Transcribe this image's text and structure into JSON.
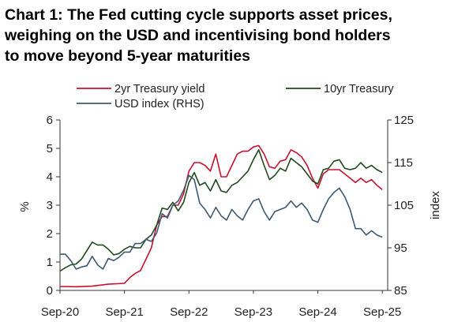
{
  "title_lines": [
    "Chart 1: The Fed cutting cycle supports asset prices,",
    "weighing on the USD and incentivising bond holders",
    "to move beyond 5-year maturities"
  ],
  "chart_data": {
    "type": "line",
    "title": "Chart 1: The Fed cutting cycle supports asset prices, weighing on the USD and incentivising bond holders to move beyond 5-year maturities",
    "ylabel": "%",
    "y2label": "index",
    "ylim": [
      0,
      6
    ],
    "y2lim": [
      85,
      125
    ],
    "yticks": [
      "0",
      "1",
      "2",
      "3",
      "4",
      "5",
      "6"
    ],
    "y2ticks": [
      "85",
      "95",
      "105",
      "115",
      "125"
    ],
    "xlim": [
      "2020-09",
      "2025-10"
    ],
    "xticks": [
      "Sep-20",
      "Sep-21",
      "Sep-22",
      "Sep-23",
      "Sep-24",
      "Sep-25"
    ],
    "grid": false,
    "legend": "top",
    "series": [
      {
        "name": "2yr Treasury yield",
        "axis": "left",
        "color": "#c8102e",
        "points": [
          [
            "2020-09",
            0.14
          ],
          [
            "2020-12",
            0.13
          ],
          [
            "2021-03",
            0.15
          ],
          [
            "2021-06",
            0.22
          ],
          [
            "2021-09",
            0.25
          ],
          [
            "2021-10",
            0.45
          ],
          [
            "2021-11",
            0.6
          ],
          [
            "2021-12",
            0.7
          ],
          [
            "2022-01",
            1.1
          ],
          [
            "2022-02",
            1.5
          ],
          [
            "2022-03",
            2.3
          ],
          [
            "2022-04",
            2.6
          ],
          [
            "2022-05",
            2.6
          ],
          [
            "2022-06",
            3.0
          ],
          [
            "2022-07",
            3.0
          ],
          [
            "2022-08",
            3.4
          ],
          [
            "2022-09",
            4.2
          ],
          [
            "2022-10",
            4.5
          ],
          [
            "2022-11",
            4.5
          ],
          [
            "2022-12",
            4.4
          ],
          [
            "2023-01",
            4.2
          ],
          [
            "2023-02",
            4.8
          ],
          [
            "2023-03",
            4.0
          ],
          [
            "2023-04",
            4.0
          ],
          [
            "2023-05",
            4.4
          ],
          [
            "2023-06",
            4.8
          ],
          [
            "2023-07",
            4.9
          ],
          [
            "2023-08",
            4.9
          ],
          [
            "2023-09",
            5.05
          ],
          [
            "2023-10",
            5.1
          ],
          [
            "2023-11",
            4.8
          ],
          [
            "2023-12",
            4.35
          ],
          [
            "2024-01",
            4.3
          ],
          [
            "2024-02",
            4.55
          ],
          [
            "2024-03",
            4.6
          ],
          [
            "2024-04",
            4.95
          ],
          [
            "2024-05",
            4.85
          ],
          [
            "2024-06",
            4.7
          ],
          [
            "2024-07",
            4.4
          ],
          [
            "2024-08",
            3.95
          ],
          [
            "2024-09",
            3.6
          ],
          [
            "2024-10",
            4.1
          ],
          [
            "2024-11",
            4.25
          ],
          [
            "2024-12",
            4.25
          ],
          [
            "2025-01",
            4.25
          ],
          [
            "2025-02",
            4.1
          ],
          [
            "2025-03",
            3.95
          ],
          [
            "2025-04",
            3.8
          ],
          [
            "2025-05",
            3.95
          ],
          [
            "2025-06",
            3.8
          ],
          [
            "2025-07",
            3.9
          ],
          [
            "2025-08",
            3.7
          ],
          [
            "2025-09",
            3.55
          ]
        ]
      },
      {
        "name": "10yr Treasury",
        "axis": "left",
        "color": "#1f4a1c",
        "points": [
          [
            "2020-09",
            0.68
          ],
          [
            "2020-10",
            0.8
          ],
          [
            "2020-11",
            0.9
          ],
          [
            "2020-12",
            0.93
          ],
          [
            "2021-01",
            1.1
          ],
          [
            "2021-02",
            1.4
          ],
          [
            "2021-03",
            1.7
          ],
          [
            "2021-04",
            1.6
          ],
          [
            "2021-05",
            1.6
          ],
          [
            "2021-06",
            1.45
          ],
          [
            "2021-07",
            1.25
          ],
          [
            "2021-08",
            1.3
          ],
          [
            "2021-09",
            1.45
          ],
          [
            "2021-10",
            1.55
          ],
          [
            "2021-11",
            1.5
          ],
          [
            "2021-12",
            1.5
          ],
          [
            "2022-01",
            1.8
          ],
          [
            "2022-02",
            1.95
          ],
          [
            "2022-03",
            2.3
          ],
          [
            "2022-04",
            2.9
          ],
          [
            "2022-05",
            2.85
          ],
          [
            "2022-06",
            3.1
          ],
          [
            "2022-07",
            2.8
          ],
          [
            "2022-08",
            3.1
          ],
          [
            "2022-09",
            3.8
          ],
          [
            "2022-10",
            4.15
          ],
          [
            "2022-11",
            3.7
          ],
          [
            "2022-12",
            3.8
          ],
          [
            "2023-01",
            3.5
          ],
          [
            "2023-02",
            3.9
          ],
          [
            "2023-03",
            3.5
          ],
          [
            "2023-04",
            3.45
          ],
          [
            "2023-05",
            3.7
          ],
          [
            "2023-06",
            3.8
          ],
          [
            "2023-07",
            4.0
          ],
          [
            "2023-08",
            4.2
          ],
          [
            "2023-09",
            4.6
          ],
          [
            "2023-10",
            4.95
          ],
          [
            "2023-11",
            4.4
          ],
          [
            "2023-12",
            3.9
          ],
          [
            "2024-01",
            4.05
          ],
          [
            "2024-02",
            4.3
          ],
          [
            "2024-03",
            4.2
          ],
          [
            "2024-04",
            4.65
          ],
          [
            "2024-05",
            4.5
          ],
          [
            "2024-06",
            4.35
          ],
          [
            "2024-07",
            4.1
          ],
          [
            "2024-08",
            3.85
          ],
          [
            "2024-09",
            3.75
          ],
          [
            "2024-10",
            4.25
          ],
          [
            "2024-11",
            4.3
          ],
          [
            "2024-12",
            4.55
          ],
          [
            "2025-01",
            4.6
          ],
          [
            "2025-02",
            4.3
          ],
          [
            "2025-03",
            4.25
          ],
          [
            "2025-04",
            4.3
          ],
          [
            "2025-05",
            4.5
          ],
          [
            "2025-06",
            4.3
          ],
          [
            "2025-07",
            4.4
          ],
          [
            "2025-08",
            4.25
          ],
          [
            "2025-09",
            4.15
          ]
        ]
      },
      {
        "name": "USD index (RHS)",
        "axis": "right",
        "color": "#3d5a73",
        "points": [
          [
            "2020-09",
            93.5
          ],
          [
            "2020-10",
            93.5
          ],
          [
            "2020-11",
            92.0
          ],
          [
            "2020-12",
            90.0
          ],
          [
            "2021-01",
            90.5
          ],
          [
            "2021-02",
            90.8
          ],
          [
            "2021-03",
            93.0
          ],
          [
            "2021-04",
            91.0
          ],
          [
            "2021-05",
            90.0
          ],
          [
            "2021-06",
            92.5
          ],
          [
            "2021-07",
            92.0
          ],
          [
            "2021-08",
            92.8
          ],
          [
            "2021-09",
            94.0
          ],
          [
            "2021-10",
            94.0
          ],
          [
            "2021-11",
            96.0
          ],
          [
            "2021-12",
            96.0
          ],
          [
            "2022-01",
            97.0
          ],
          [
            "2022-02",
            96.5
          ],
          [
            "2022-03",
            98.5
          ],
          [
            "2022-04",
            103.0
          ],
          [
            "2022-05",
            102.0
          ],
          [
            "2022-06",
            105.0
          ],
          [
            "2022-07",
            106.0
          ],
          [
            "2022-08",
            108.5
          ],
          [
            "2022-09",
            112.0
          ],
          [
            "2022-10",
            111.0
          ],
          [
            "2022-11",
            105.5
          ],
          [
            "2022-12",
            104.0
          ],
          [
            "2023-01",
            102.0
          ],
          [
            "2023-02",
            104.5
          ],
          [
            "2023-03",
            102.5
          ],
          [
            "2023-04",
            101.5
          ],
          [
            "2023-05",
            104.0
          ],
          [
            "2023-06",
            102.5
          ],
          [
            "2023-07",
            101.5
          ],
          [
            "2023-08",
            104.0
          ],
          [
            "2023-09",
            106.0
          ],
          [
            "2023-10",
            106.5
          ],
          [
            "2023-11",
            103.5
          ],
          [
            "2023-12",
            101.5
          ],
          [
            "2024-01",
            103.5
          ],
          [
            "2024-02",
            104.0
          ],
          [
            "2024-03",
            104.5
          ],
          [
            "2024-04",
            106.0
          ],
          [
            "2024-05",
            104.5
          ],
          [
            "2024-06",
            105.5
          ],
          [
            "2024-07",
            104.0
          ],
          [
            "2024-08",
            101.5
          ],
          [
            "2024-09",
            101.0
          ],
          [
            "2024-10",
            104.0
          ],
          [
            "2024-11",
            106.5
          ],
          [
            "2024-12",
            108.0
          ],
          [
            "2025-01",
            109.0
          ],
          [
            "2025-02",
            107.0
          ],
          [
            "2025-03",
            104.0
          ],
          [
            "2025-04",
            99.5
          ],
          [
            "2025-05",
            99.5
          ],
          [
            "2025-06",
            98.0
          ],
          [
            "2025-07",
            99.0
          ],
          [
            "2025-08",
            98.0
          ],
          [
            "2025-09",
            97.5
          ]
        ]
      }
    ]
  }
}
